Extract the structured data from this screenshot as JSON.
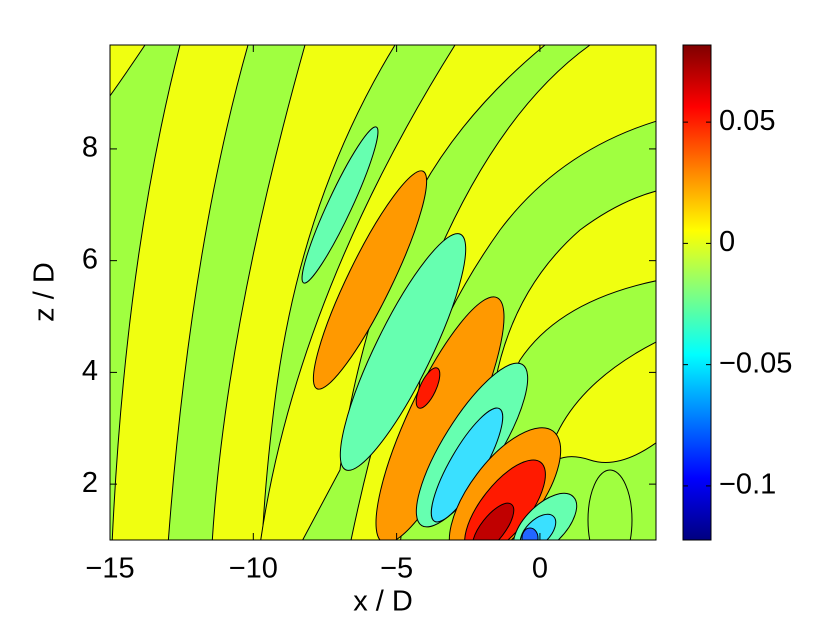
{
  "chart_data": {
    "type": "contour",
    "xlabel": "x / D",
    "ylabel": "z / D",
    "xlim": [
      -15,
      4.05
    ],
    "ylim": [
      1,
      9.86
    ],
    "xticks": [
      {
        "value": -15,
        "label": "−15"
      },
      {
        "value": -10,
        "label": "−10"
      },
      {
        "value": -5,
        "label": "−5"
      },
      0
    ],
    "yticks": [
      2,
      4,
      6,
      8
    ],
    "colorbar": {
      "colormap": "jet",
      "clim": [
        -0.1223,
        0.0818
      ],
      "ticks": [
        {
          "value": -0.1,
          "label": "−0.1"
        },
        {
          "value": -0.05,
          "label": "−0.05"
        },
        0,
        0.05
      ]
    }
  }
}
